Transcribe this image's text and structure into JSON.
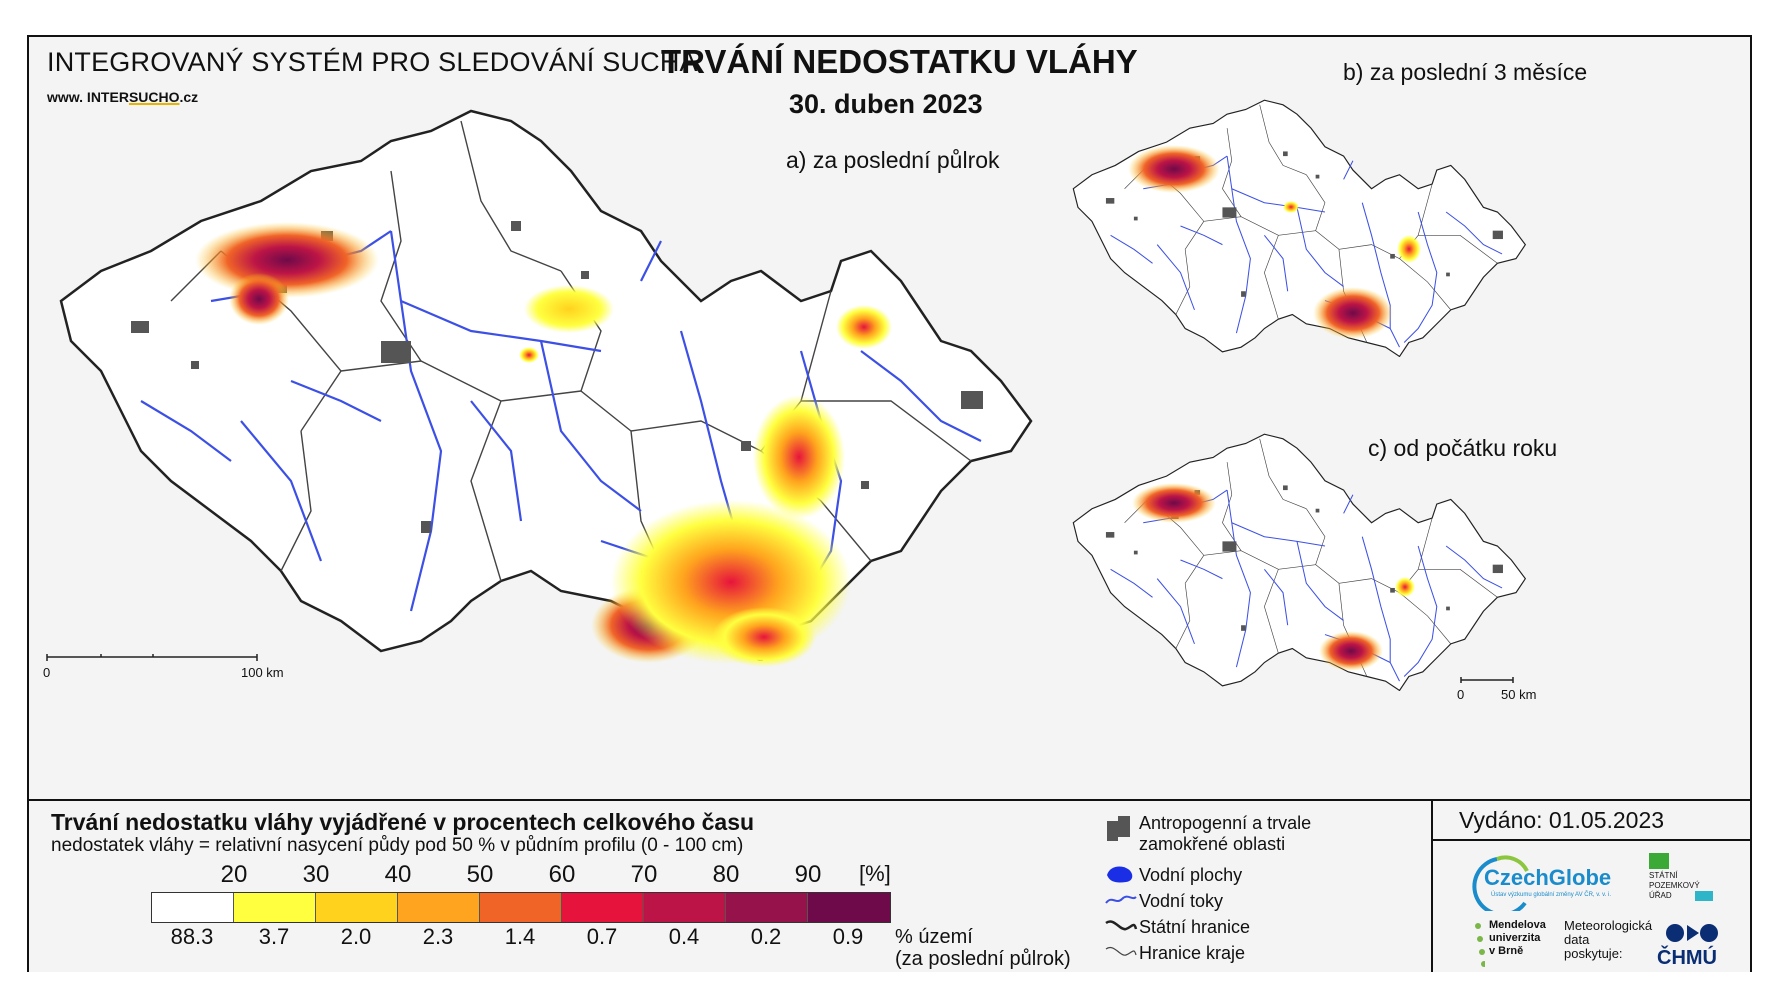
{
  "header": {
    "system_name": "INTEGROVANÝ SYSTÉM PRO SLEDOVÁNÍ SUCHA",
    "url_prefix": "www. INTER",
    "url_brand": "SUCHO",
    "url_suffix": ".cz",
    "title": "TRVÁNÍ NEDOSTATKU VLÁHY",
    "date": "30. duben 2023"
  },
  "maps": {
    "a_label": "a) za poslední půlrok",
    "b_label": "b) za poslední 3 měsíce",
    "c_label": "c) od počátku roku",
    "scale_main_0": "0",
    "scale_main_end": "100 km",
    "scale_small_0": "0",
    "scale_small_end": "50 km"
  },
  "legend": {
    "title": "Trvání nedostatku vláhy vyjádřené v procentech celkového času",
    "subtitle": "nedostatek vláhy = relativní nasycení půdy pod 50 % v půdním profilu (0 - 100 cm)",
    "ticks": [
      "20",
      "30",
      "40",
      "50",
      "60",
      "70",
      "80",
      "90"
    ],
    "unit": "[%]",
    "colors": [
      "#ffffff",
      "#ffff40",
      "#ffd21e",
      "#ffa41e",
      "#f06428",
      "#e6143c",
      "#bc1446",
      "#96124a",
      "#6e0a4a"
    ],
    "percent_area": [
      "88.3",
      "3.7",
      "2.0",
      "2.3",
      "1.4",
      "0.7",
      "0.4",
      "0.2",
      "0.9"
    ],
    "percent_label_1": "% území",
    "percent_label_2": "(za poslední půlrok)"
  },
  "key": {
    "anthropogenic_1": "Antropogenní a trvale",
    "anthropogenic_2": "zamokřené oblasti",
    "water_bodies": "Vodní plochy",
    "rivers": "Vodní toky",
    "state_border": "Státní hranice",
    "region_border": "Hranice kraje"
  },
  "issue": {
    "issued": "Vydáno: 01.05.2023",
    "czechglobe": "CzechGlobe",
    "czechglobe_small": "Ústav výzkumu globální změny AV ČR, v. v. i.",
    "spu_1": "STÁTNÍ",
    "spu_2": "POZEMKOVÝ",
    "spu_3": "ÚŘAD",
    "mendel_1": "Mendelova",
    "mendel_2": "univerzita",
    "mendel_3": "v Brně",
    "meteo_1": "Meteorologická",
    "meteo_2": "data",
    "meteo_3": "poskytuje:",
    "chmu": "ČHMÚ"
  },
  "colors": {
    "river": "#3c50e6",
    "urban": "#555555",
    "border": "#222222"
  }
}
